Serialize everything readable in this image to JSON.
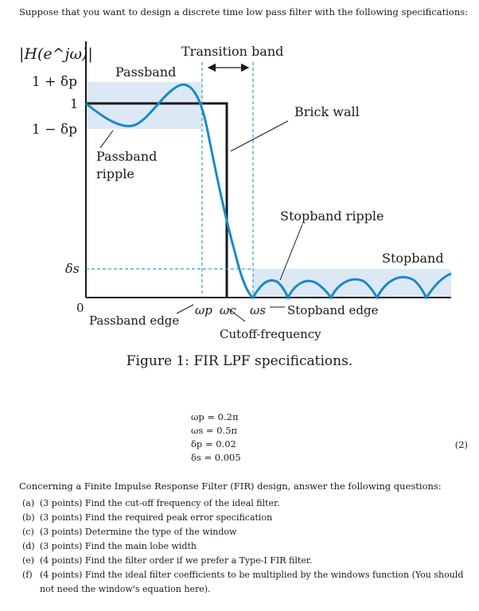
{
  "intro_text": "Suppose that you want to design a discrete time low pass filter with the following specifications:",
  "figure": {
    "y_label": "|H(e^jω)|",
    "tick_one_plus": "1 + δp",
    "tick_one": "1",
    "tick_one_minus": "1 − δp",
    "tick_delta_s": "δs",
    "origin": "0",
    "labels": {
      "transition_band": "Transition band",
      "passband": "Passband",
      "brick_wall": "Brick wall",
      "passband_ripple_line1": "Passband",
      "passband_ripple_line2": "ripple",
      "stopband_ripple": "Stopband ripple",
      "stopband": "Stopband",
      "passband_edge": "Passband edge",
      "omega_p": "ωp",
      "omega_c": "ωc",
      "omega_s": "ωs",
      "stopband_edge": "Stopband edge",
      "cutoff_frequency": "Cutoff-frequency"
    },
    "colors": {
      "curve": "#1a8ac6",
      "band_fill": "#dce9f5",
      "dashed": "#2a9fd6"
    }
  },
  "caption": "Figure 1: FIR LPF specifications.",
  "equations": [
    "ωp = 0.2π",
    "ωs = 0.5π",
    "δp = 0.02",
    "δs = 0.005"
  ],
  "equation_number": "(2)",
  "concerning_text": "Concerning a Finite Impulse Response Filter (FIR) design, answer the following questions:",
  "questions": [
    {
      "letter": "(a)",
      "text": "(3 points) Find the cut-off frequency of the ideal filter."
    },
    {
      "letter": "(b)",
      "text": "(3 points) Find the required peak error specification"
    },
    {
      "letter": "(c)",
      "text": "(3 points) Determine the type of the window"
    },
    {
      "letter": "(d)",
      "text": "(3 points) Find the main lobe width"
    },
    {
      "letter": "(e)",
      "text": "(4 points) Find the filter order if we prefer a Type-I FIR filter."
    },
    {
      "letter": "(f)",
      "text": "(4 points) Find the ideal filter coefficients to be multiplied by the windows function (You should not need the window's equation here)."
    }
  ]
}
